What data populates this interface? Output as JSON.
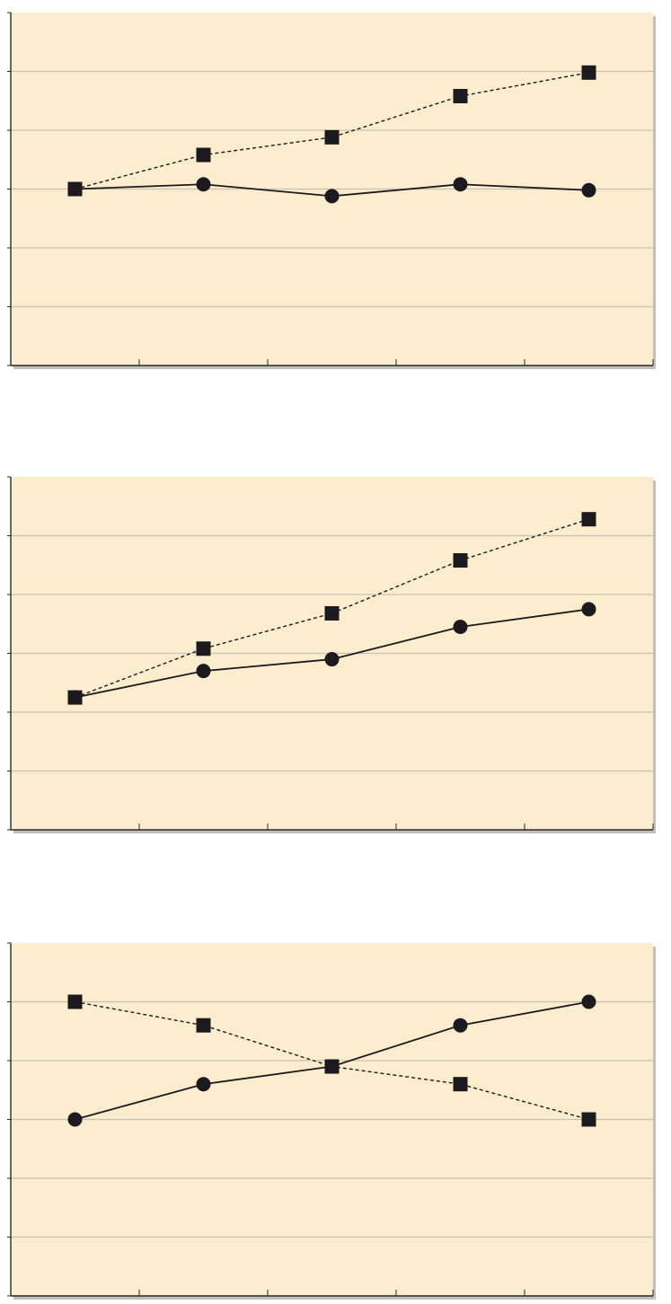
{
  "colors": {
    "background": "#fbedcd",
    "gridline": "#c9c2b4",
    "axis": "#2a2a2a",
    "marker": "#1c1a1e",
    "shadow": "#8f8a80"
  },
  "chart_data": [
    {
      "type": "line",
      "x": [
        1,
        2,
        3,
        4,
        5
      ],
      "xlim": [
        0.5,
        5.5
      ],
      "ylim": [
        0,
        6
      ],
      "y_ticks": [
        0,
        1,
        2,
        3,
        4,
        5,
        6
      ],
      "x_ticks": [
        1.5,
        2.5,
        3.5,
        4.5,
        5.5
      ],
      "grid": true,
      "series": [
        {
          "marker": "square",
          "line": "dashed",
          "values": [
            3.0,
            3.58,
            3.88,
            4.58,
            4.98
          ]
        },
        {
          "marker": "circle",
          "line": "solid",
          "values": [
            3.0,
            3.08,
            2.88,
            3.08,
            2.98
          ]
        }
      ]
    },
    {
      "type": "line",
      "x": [
        1,
        2,
        3,
        4,
        5
      ],
      "xlim": [
        0.5,
        5.5
      ],
      "ylim": [
        0,
        6
      ],
      "y_ticks": [
        0,
        1,
        2,
        3,
        4,
        5,
        6
      ],
      "x_ticks": [
        1.5,
        2.5,
        3.5,
        4.5,
        5.5
      ],
      "grid": true,
      "series": [
        {
          "marker": "square",
          "line": "dashed",
          "values": [
            2.25,
            3.08,
            3.68,
            4.58,
            5.28
          ]
        },
        {
          "marker": "circle",
          "line": "solid",
          "values": [
            2.25,
            2.7,
            2.9,
            3.45,
            3.75
          ]
        }
      ]
    },
    {
      "type": "line",
      "x": [
        1,
        2,
        3,
        4,
        5
      ],
      "xlim": [
        0.5,
        5.5
      ],
      "ylim": [
        0,
        6
      ],
      "y_ticks": [
        0,
        1,
        2,
        3,
        4,
        5,
        6
      ],
      "x_ticks": [
        1.5,
        2.5,
        3.5,
        4.5,
        5.5
      ],
      "grid": true,
      "series": [
        {
          "marker": "square",
          "line": "dashed",
          "values": [
            5.0,
            4.6,
            3.9,
            3.6,
            3.0
          ]
        },
        {
          "marker": "circle",
          "line": "solid",
          "values": [
            3.0,
            3.6,
            3.9,
            4.6,
            5.0
          ]
        }
      ]
    }
  ]
}
